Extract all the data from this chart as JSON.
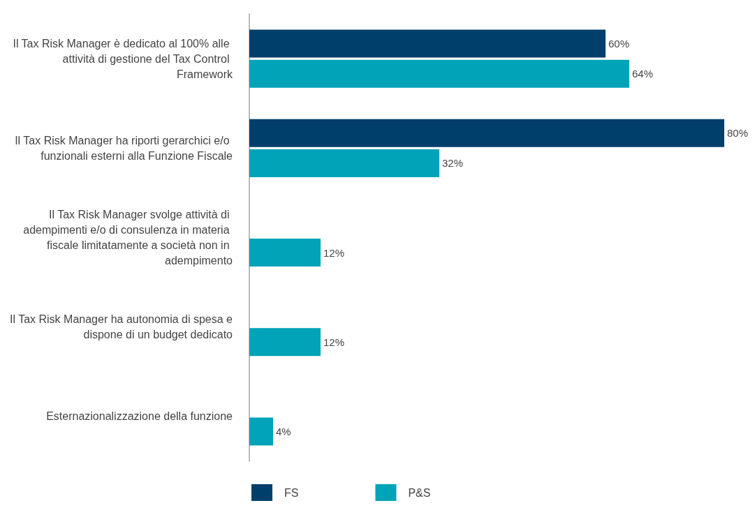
{
  "chart_data": {
    "type": "bar",
    "orientation": "horizontal",
    "categories": [
      "Il Tax Risk Manager è dedicato al 100% alle attività di gestione del Tax Control Framework",
      "Il Tax Risk Manager ha riporti gerarchici e/o funzionali esterni alla Funzione Fiscale",
      "Il Tax Risk Manager svolge attività di adempimenti e/o di consulenza in materia fiscale limitatamente a società non in adempimento",
      "Il Tax Risk Manager ha autonomia di spesa e dispone di un budget dedicato",
      "Esternazionalizzazione della funzione"
    ],
    "series": [
      {
        "name": "FS",
        "color": "#003f6b",
        "values": [
          60,
          80,
          null,
          null,
          null
        ],
        "value_labels": [
          "60%",
          "80%",
          null,
          null,
          null
        ]
      },
      {
        "name": "P&S",
        "color": "#00a3b8",
        "values": [
          64,
          32,
          12,
          12,
          4
        ],
        "value_labels": [
          "64%",
          "32%",
          "12%",
          "12%",
          "4%"
        ]
      }
    ],
    "legend": "bottom left"
  }
}
